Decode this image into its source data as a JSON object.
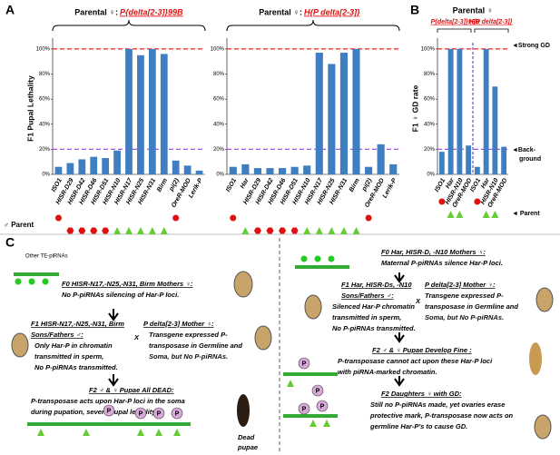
{
  "panel_labels": [
    "A",
    "B",
    "C"
  ],
  "chart_data": [
    {
      "type": "bar",
      "title": "Parental ♀:",
      "subtitle": "P{delta[2-3]}99B",
      "ylabel": "F1 Pupal Lethality",
      "parent_label": "♂ Parent",
      "categories": [
        "ISO1",
        "HISR-D29",
        "HISR-D42",
        "HISR-D46",
        "HISR-D51",
        "HISR-N10",
        "HISR-N17",
        "HISR-N25",
        "HISR-N31",
        "Birm",
        "pi(2)",
        "OreR-MOD",
        "Lerik-P"
      ],
      "values": [
        6,
        9,
        12,
        14,
        13,
        19,
        100,
        95,
        100,
        96,
        11,
        7,
        3
      ],
      "color": "#3f7fc1",
      "ylim": [
        0,
        105
      ],
      "yticks": [
        {
          "value": 0,
          "label": "0%"
        },
        {
          "value": 20,
          "label": "20%"
        },
        {
          "value": 40,
          "label": "40%"
        },
        {
          "value": 60,
          "label": "60%"
        },
        {
          "value": 80,
          "label": "80%"
        },
        {
          "value": 100,
          "label": "100%"
        }
      ],
      "hlines": [
        {
          "value": 100,
          "color": "#e02020"
        },
        {
          "value": 20,
          "color": "#9b59e0"
        }
      ]
    },
    {
      "type": "bar",
      "title": "Parental ♀:",
      "subtitle": "H{P delta[2-3]}",
      "categories": [
        "ISO1",
        "Har",
        "HISR-D29",
        "HISR-D42",
        "HISR-D46",
        "HISR-D51",
        "HISR-N10",
        "HISR-N17",
        "HISR-N25",
        "HISR-N31",
        "Birm",
        "pi(2)",
        "OreR-MOD",
        "Lerik-P"
      ],
      "values": [
        6,
        8,
        5,
        5,
        5,
        6,
        7,
        97,
        88,
        97,
        100,
        6,
        24,
        8
      ],
      "color": "#3f7fc1",
      "ylim": [
        0,
        105
      ],
      "yticks": [
        {
          "value": 0,
          "label": "0%"
        },
        {
          "value": 20,
          "label": "20%"
        },
        {
          "value": 40,
          "label": "40%"
        },
        {
          "value": 60,
          "label": "60%"
        },
        {
          "value": 80,
          "label": "80%"
        },
        {
          "value": 100,
          "label": "100%"
        }
      ],
      "hlines": [
        {
          "value": 100,
          "color": "#e02020"
        },
        {
          "value": 20,
          "color": "#9b59e0"
        }
      ]
    },
    {
      "type": "bar",
      "title": "Parental ♀",
      "group_labels": [
        "P{delta[2-3]}99B",
        "H{P delta[2-3]}"
      ],
      "ylabel": "F1 ♀ GD rate",
      "annotations": [
        "◄Strong GD",
        "◄Back-",
        "ground",
        "◄ Parent"
      ],
      "categories": [
        "ISO1",
        "Har",
        "HISR-N10",
        "OreR-MOD",
        "ISO1",
        "Har",
        "HISR-N10",
        "OreR-MOD"
      ],
      "values": [
        18,
        100,
        100,
        23,
        6,
        100,
        70,
        22
      ],
      "color": "#3f7fc1",
      "ylim": [
        0,
        105
      ],
      "yticks": [
        {
          "value": 0,
          "label": "0%"
        },
        {
          "value": 20,
          "label": "20%"
        },
        {
          "value": 40,
          "label": "40%"
        },
        {
          "value": 60,
          "label": "60%"
        },
        {
          "value": 80,
          "label": "80%"
        },
        {
          "value": 100,
          "label": "100%"
        }
      ],
      "hlines": [
        {
          "value": 100,
          "color": "#e02020"
        },
        {
          "value": 20,
          "color": "#9b59e0"
        }
      ]
    }
  ],
  "panel_c": {
    "p_label": "P",
    "texts": [
      "Other TE-piRNAs",
      "F0 HISR-N17,-N25,-N31, Birm Mothers ♀:",
      "No P-piRNAs silencing of Har-P loci.",
      "F1 HISR-N17,-N25,-N31, Birm",
      "Sons/Fathers ♂:",
      "Only Har-P in chromatin",
      "transmitted in sperm,",
      "No P-piRNAs transmitted.",
      "X",
      "P delta[2-3] Mother ♀:",
      "Transgene expressed P-",
      "transposase in Germline and",
      "Soma, but No P-piRNAs.",
      "F2 ♂ & ♀ Pupae All DEAD:",
      "P-transposase acts upon Har-P loci in the soma",
      "during pupation, severe pupal lethality.",
      "Dead",
      "pupae",
      "F0 Har, HISR-D, -N10 Mothers ♀:",
      "Maternal P-piRNAs silence Har-P loci.",
      "F1 Har, HISR-Ds, -N10",
      "Sons/Fathers ♂:",
      "Silenced Har-P chromatin",
      "transmitted in sperm,",
      "No P-piRNAs transmitted.",
      "X",
      "P delta[2-3] Mother ♀:",
      "Transgene expressed P-",
      "transposase in Germline and",
      "Soma, but No P-piRNAs.",
      "F2 ♂ & ♀ Pupae Develop Fine :",
      "P-transposase cannot act upon these Har-P loci",
      "with piRNA-marked chromatin.",
      "F2 Daughters ♀ with GD:",
      "Still no P-piRNAs made, yet ovaries erase",
      "protective mark, P-transposase now acts on",
      "germline Har-P's to cause GD."
    ]
  }
}
